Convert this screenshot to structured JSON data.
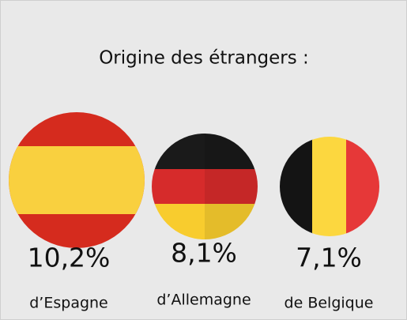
{
  "title": "Origine des étrangers :",
  "items": [
    {
      "value": "10,2%",
      "label": "d’Espagne"
    },
    {
      "value": "8,1%",
      "label": "d’Allemagne"
    },
    {
      "value": "7,1%",
      "label": "de Belgique"
    }
  ]
}
